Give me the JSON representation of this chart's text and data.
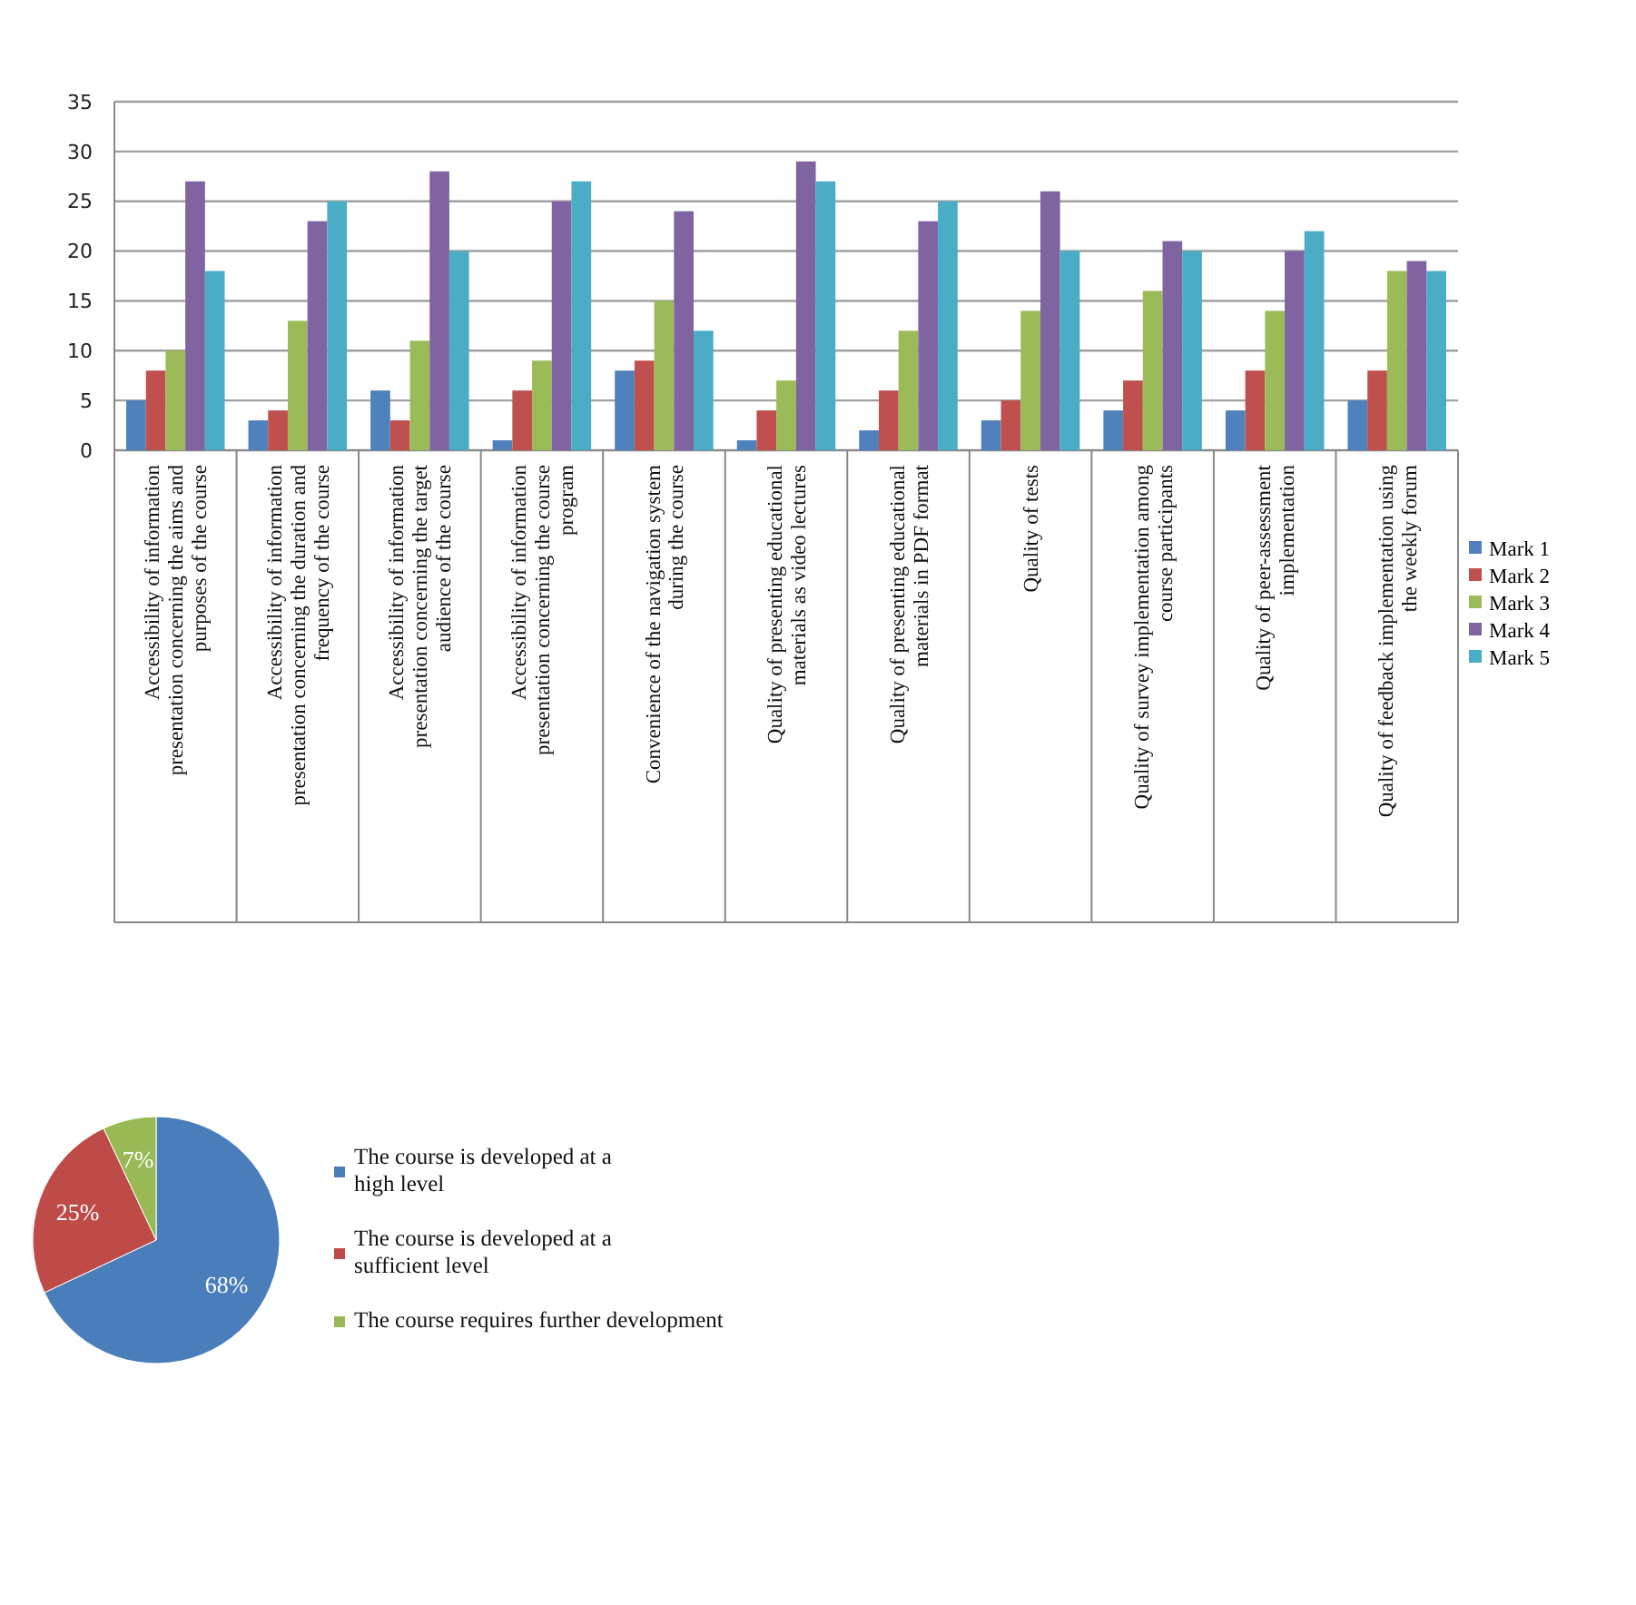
{
  "chart_data": [
    {
      "type": "bar",
      "categories": [
        "Accessibility of information presentation concerning the aims and purposes of the course",
        "Accessibility of information presentation concerning the duration and frequency of the course",
        "Accessibility of information presentation concerning the target audience of the course",
        "Accessibility of information presentation concerning the course program",
        "Convenience of the navigation system during the course",
        "Quality of presenting educational materials as video lectures",
        "Quality of presenting educational materials in PDF format",
        "Quality of tests",
        "Quality of survey implementation among course participants",
        "Quality of peer-assessment implementation",
        "Quality of feedback implementation using the weekly forum"
      ],
      "series": [
        {
          "name": "Mark 1",
          "color": "#4f81bd",
          "values": [
            5,
            3,
            6,
            1,
            8,
            1,
            2,
            3,
            4,
            4,
            5
          ]
        },
        {
          "name": "Mark 2",
          "color": "#c0504d",
          "values": [
            8,
            4,
            3,
            6,
            9,
            4,
            6,
            5,
            7,
            8,
            8
          ]
        },
        {
          "name": "Mark 3",
          "color": "#9bbb59",
          "values": [
            10,
            13,
            11,
            9,
            15,
            7,
            12,
            14,
            16,
            14,
            18
          ]
        },
        {
          "name": "Mark 4",
          "color": "#8064a2",
          "values": [
            27,
            23,
            28,
            25,
            24,
            29,
            23,
            26,
            21,
            20,
            19
          ]
        },
        {
          "name": "Mark 5",
          "color": "#4bacc6",
          "values": [
            18,
            25,
            20,
            27,
            12,
            27,
            25,
            20,
            20,
            22,
            18
          ]
        }
      ],
      "ylim": [
        0,
        35
      ],
      "yticks": [
        0,
        5,
        10,
        15,
        20,
        25,
        30,
        35
      ],
      "grid": "y",
      "legend": "right"
    },
    {
      "type": "pie",
      "categories": [
        "The course is developed at a high level",
        "The course is developed at a sufficient level",
        "The course requires further development"
      ],
      "values": [
        68,
        25,
        7
      ],
      "value_labels": [
        "68%",
        "25%",
        "7%"
      ],
      "colors": [
        "#4a7ebb",
        "#be4b48",
        "#98b954"
      ],
      "legend": "right"
    }
  ]
}
